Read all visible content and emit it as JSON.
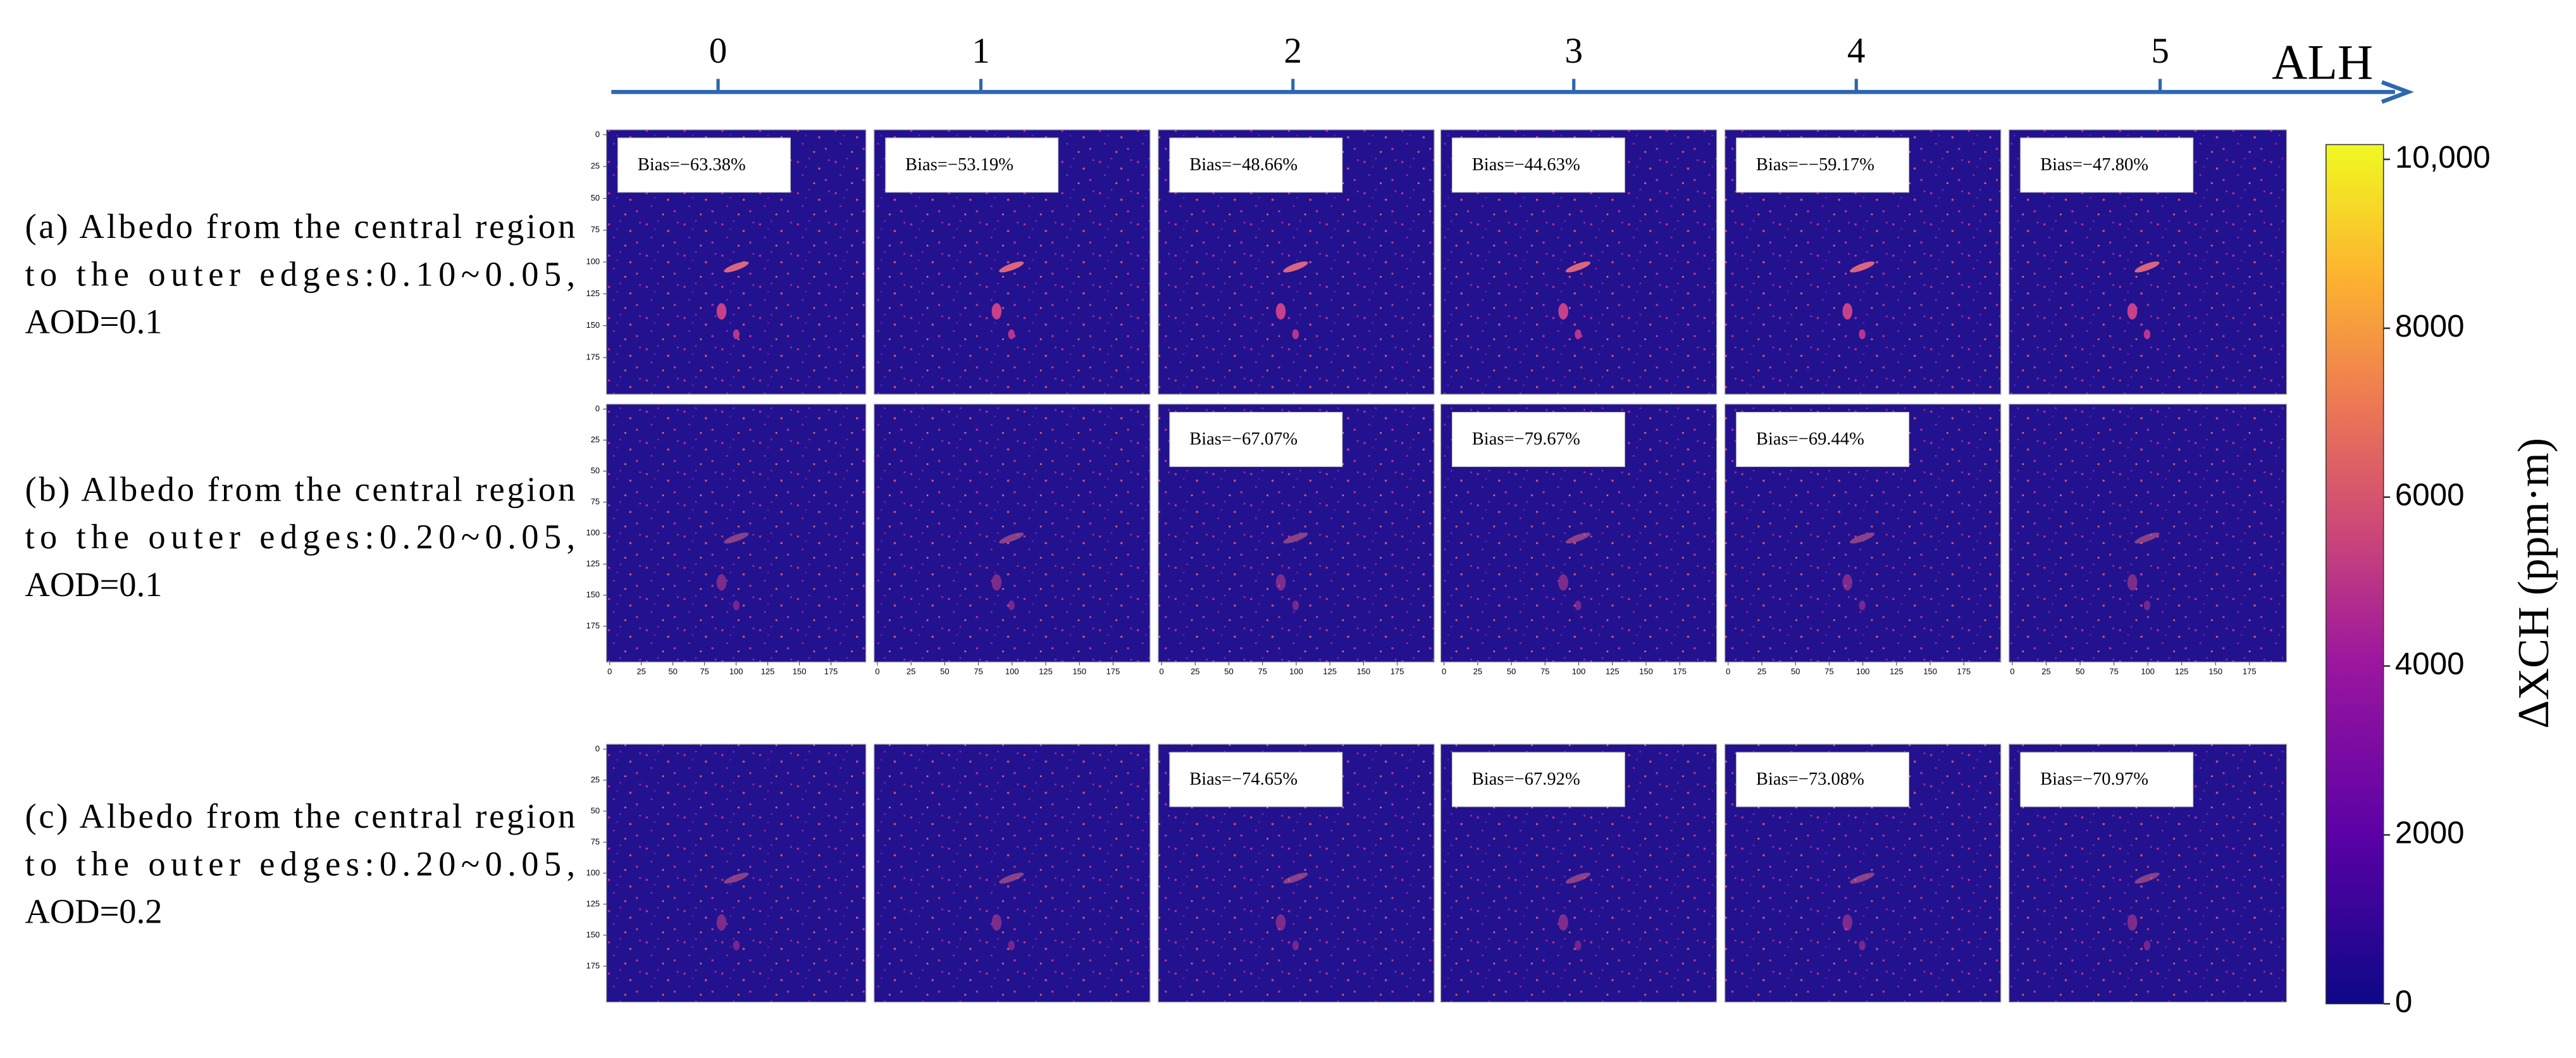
{
  "alh_axis": {
    "label": "ALH",
    "ticks": [
      0,
      1,
      2,
      3,
      4,
      5
    ]
  },
  "rows": [
    {
      "label_lines": [
        "(a) Albedo from the central region",
        "to the outer edges:0.10~0.05,",
        "AOD=0.1"
      ],
      "biases": [
        "Bias=−63.38%",
        "Bias=−53.19%",
        "Bias=−48.66%",
        "Bias=−44.63%",
        "Bias=−−59.17%",
        "Bias=−47.80%"
      ]
    },
    {
      "label_lines": [
        "(b) Albedo from the central region",
        "to the outer edges:0.20~0.05,",
        "AOD=0.1"
      ],
      "biases": [
        null,
        null,
        "Bias=−67.07%",
        "Bias=−79.67%",
        "Bias=−69.44%",
        null
      ]
    },
    {
      "label_lines": [
        "(c) Albedo from the central region",
        "to the outer edges:0.20~0.05,",
        "AOD=0.2"
      ],
      "biases": [
        null,
        null,
        "Bias=−74.65%",
        "Bias=−67.92%",
        "Bias=−73.08%",
        "Bias=−70.97%"
      ]
    }
  ],
  "panel_ticks": [
    0,
    25,
    50,
    75,
    100,
    125,
    150,
    175
  ],
  "colorbar": {
    "label": "ΔXCH (ppm·m)",
    "lim": [
      0,
      10000
    ],
    "ticks": [
      {
        "value": 10000,
        "label": "10,000"
      },
      8000,
      6000,
      4000,
      2000,
      0
    ]
  }
}
